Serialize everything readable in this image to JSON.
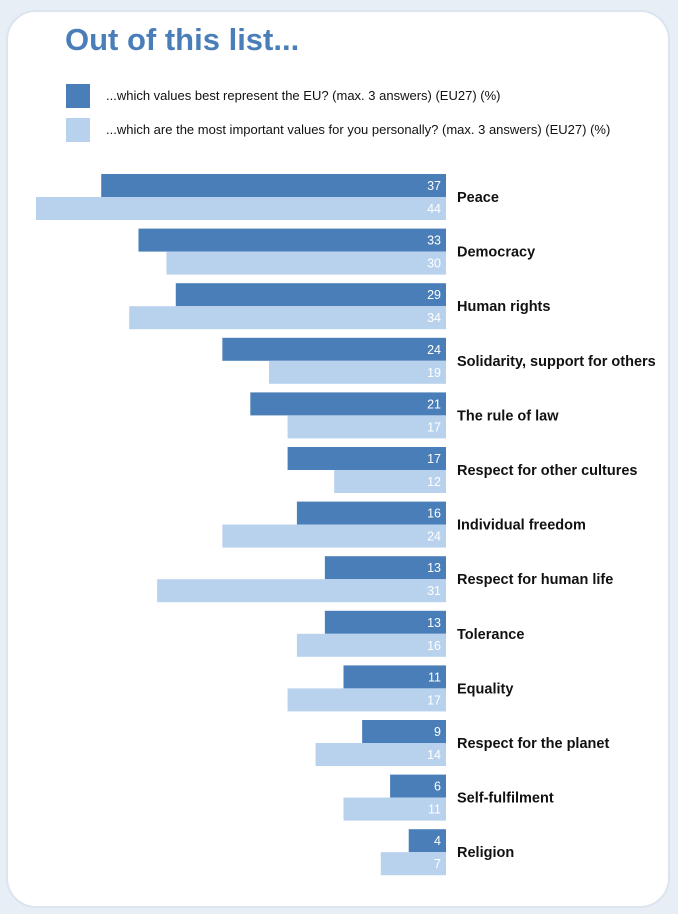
{
  "title": "Out of this list...",
  "colors": {
    "eu": "#4a7eb8",
    "personal": "#b8d2ee",
    "title": "#4a7eb8"
  },
  "legend": [
    {
      "label": "...which values best represent the EU? (max. 3 answers) (EU27) (%)",
      "color": "#4a7eb8"
    },
    {
      "label": "...which are the most important values for you personally? (max. 3 answers) (EU27) (%)",
      "color": "#b8d2ee"
    }
  ],
  "chart_data": {
    "type": "bar",
    "orientation": "horizontal",
    "categories": [
      "Peace",
      "Democracy",
      "Human rights",
      "Solidarity, support for others",
      "The rule of law",
      "Respect for other cultures",
      "Individual freedom",
      "Respect for human life",
      "Tolerance",
      "Equality",
      "Respect for the planet",
      "Self-fulfilment",
      "Religion"
    ],
    "series": [
      {
        "name": "...which values best represent the EU? (max. 3 answers) (EU27) (%)",
        "values": [
          37,
          33,
          29,
          24,
          21,
          17,
          16,
          13,
          13,
          11,
          9,
          6,
          4
        ]
      },
      {
        "name": "...which are the most important values for you personally? (max. 3 answers) (EU27) (%)",
        "values": [
          44,
          30,
          34,
          19,
          17,
          12,
          24,
          31,
          16,
          17,
          14,
          11,
          7
        ]
      }
    ],
    "xlim": [
      0,
      44
    ],
    "title": "Out of this list...",
    "legend_position": "top"
  }
}
